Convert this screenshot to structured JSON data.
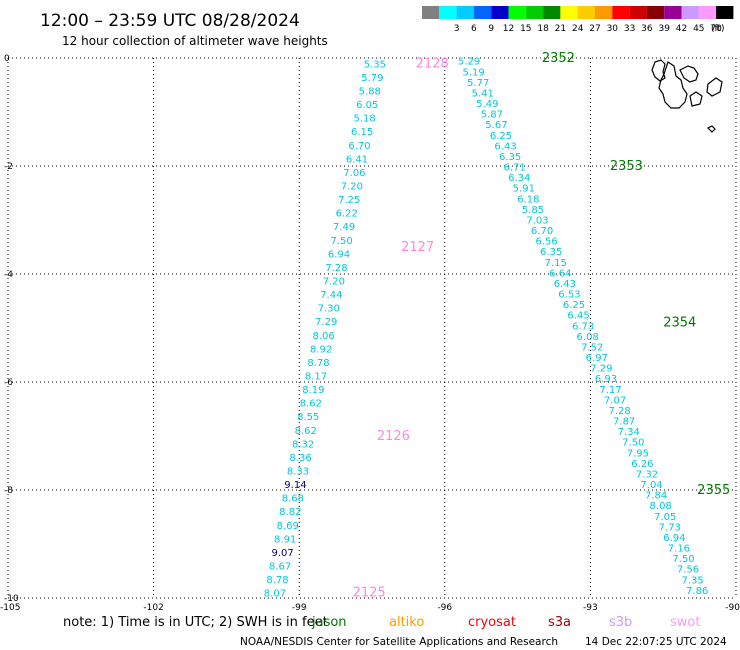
{
  "header": {
    "title": "12:00 – 23:59 UTC 08/28/2024",
    "subtitle": "12 hour collection of altimeter wave heights"
  },
  "legend": {
    "unit": "(ft)",
    "bins": [
      {
        "label": "",
        "color": "#808080"
      },
      {
        "label": "3",
        "color": "#00ffff"
      },
      {
        "label": "6",
        "color": "#00ccff"
      },
      {
        "label": "9",
        "color": "#0066ff"
      },
      {
        "label": "12",
        "color": "#0000cc"
      },
      {
        "label": "15",
        "color": "#00ff00"
      },
      {
        "label": "18",
        "color": "#00cc00"
      },
      {
        "label": "21",
        "color": "#008800"
      },
      {
        "label": "24",
        "color": "#ffff00"
      },
      {
        "label": "27",
        "color": "#ffcc00"
      },
      {
        "label": "30",
        "color": "#ff9900"
      },
      {
        "label": "33",
        "color": "#ff0000"
      },
      {
        "label": "36",
        "color": "#cc0000"
      },
      {
        "label": "39",
        "color": "#880000"
      },
      {
        "label": "42",
        "color": "#990099"
      },
      {
        "label": "45",
        "color": "#cc99ff"
      },
      {
        "label": "70",
        "color": "#ff99ff"
      },
      {
        "label": "",
        "color": "#000000"
      }
    ]
  },
  "colors": {
    "cyan_values": "#00c8dc",
    "navy_values": "#000088",
    "jason_passes": "#007700",
    "swot_passes": "#ff88dd"
  },
  "chart_data": {
    "type": "scatter",
    "xlim": [
      -105,
      -90
    ],
    "ylim": [
      -10,
      0
    ],
    "x_ticks": [
      "-105",
      "-102",
      "-99",
      "-96",
      "-93",
      "-90"
    ],
    "y_ticks": [
      "0",
      "-2",
      "-4",
      "-6",
      "-8",
      "-10"
    ],
    "grid": true,
    "tracks": [
      {
        "name": "swot",
        "lon_start": -97.44,
        "lat_start": -0.1,
        "lon_end": -99.5,
        "lat_end": -9.9,
        "values": [
          "5.35",
          "5.79",
          "5.88",
          "6.05",
          "5.18",
          "6.15",
          "6.70",
          "6.41",
          "7.06",
          "7.20",
          "7.25",
          "6.22",
          "7.49",
          "7.50",
          "6.94",
          "7.28",
          "7.20",
          "7.44",
          "7.30",
          "7.29",
          "8.06",
          "8.92",
          "8.78",
          "8.17",
          "8.19",
          "8.62",
          "8.55",
          "8.62",
          "8.32",
          "8.36",
          "8.33",
          "9.14",
          "8.68",
          "8.82",
          "8.69",
          "8.91",
          "9.07",
          "8.67",
          "8.78",
          "8.07"
        ],
        "highlight": {
          "9.14": "navy",
          "9.07": "navy"
        }
      },
      {
        "name": "jason",
        "lon_start": -95.5,
        "lat_start": -0.05,
        "lon_end": -90.8,
        "lat_end": -9.85,
        "values": [
          "5.29",
          "5.19",
          "5.77",
          "5.41",
          "5.49",
          "5.87",
          "5.67",
          "6.25",
          "6.43",
          "6.35",
          "6.71",
          "6.34",
          "5.91",
          "6.18",
          "5.85",
          "7.03",
          "6.70",
          "6.56",
          "6.35",
          "7.15",
          "6.64",
          "6.43",
          "6.53",
          "6.25",
          "6.45",
          "6.73",
          "6.08",
          "7.52",
          "6.97",
          "7.29",
          "6.93",
          "7.17",
          "7.07",
          "7.28",
          "7.87",
          "7.34",
          "7.50",
          "7.95",
          "6.26",
          "7.32",
          "7.04",
          "7.84",
          "8.08",
          "7.05",
          "7.73",
          "6.94",
          "7.16",
          "7.50",
          "7.56",
          "7.35",
          "7.86"
        ],
        "highlight": {}
      }
    ],
    "pass_labels": [
      {
        "text": "2128",
        "lon": -96.6,
        "lat": -0.1,
        "series": "swot"
      },
      {
        "text": "2127",
        "lon": -96.9,
        "lat": -3.5,
        "series": "swot"
      },
      {
        "text": "2126",
        "lon": -97.4,
        "lat": -7.0,
        "series": "swot"
      },
      {
        "text": "2125",
        "lon": -97.9,
        "lat": -9.9,
        "series": "swot"
      },
      {
        "text": "2352",
        "lon": -94.0,
        "lat": 0.0,
        "series": "jason"
      },
      {
        "text": "2353",
        "lon": -92.6,
        "lat": -2.0,
        "series": "jason"
      },
      {
        "text": "2354",
        "lon": -91.5,
        "lat": -4.9,
        "series": "jason"
      },
      {
        "text": "2355",
        "lon": -90.8,
        "lat": -8.0,
        "series": "jason"
      }
    ]
  },
  "footer": {
    "note": "note: 1) Time is in UTC; 2) SWH is in feet",
    "satellites": [
      {
        "name": "jason",
        "color": "#007700"
      },
      {
        "name": "altiko",
        "color": "#ff9900"
      },
      {
        "name": "cryosat",
        "color": "#ff0000"
      },
      {
        "name": "s3a",
        "color": "#990000"
      },
      {
        "name": "s3b",
        "color": "#cc99ff"
      },
      {
        "name": "swot",
        "color": "#ff99ff"
      }
    ],
    "credit": "NOAA/NESDIS Center for Satellite Applications and Research",
    "timestamp": "14 Dec 22:07:25 UTC 2024"
  }
}
